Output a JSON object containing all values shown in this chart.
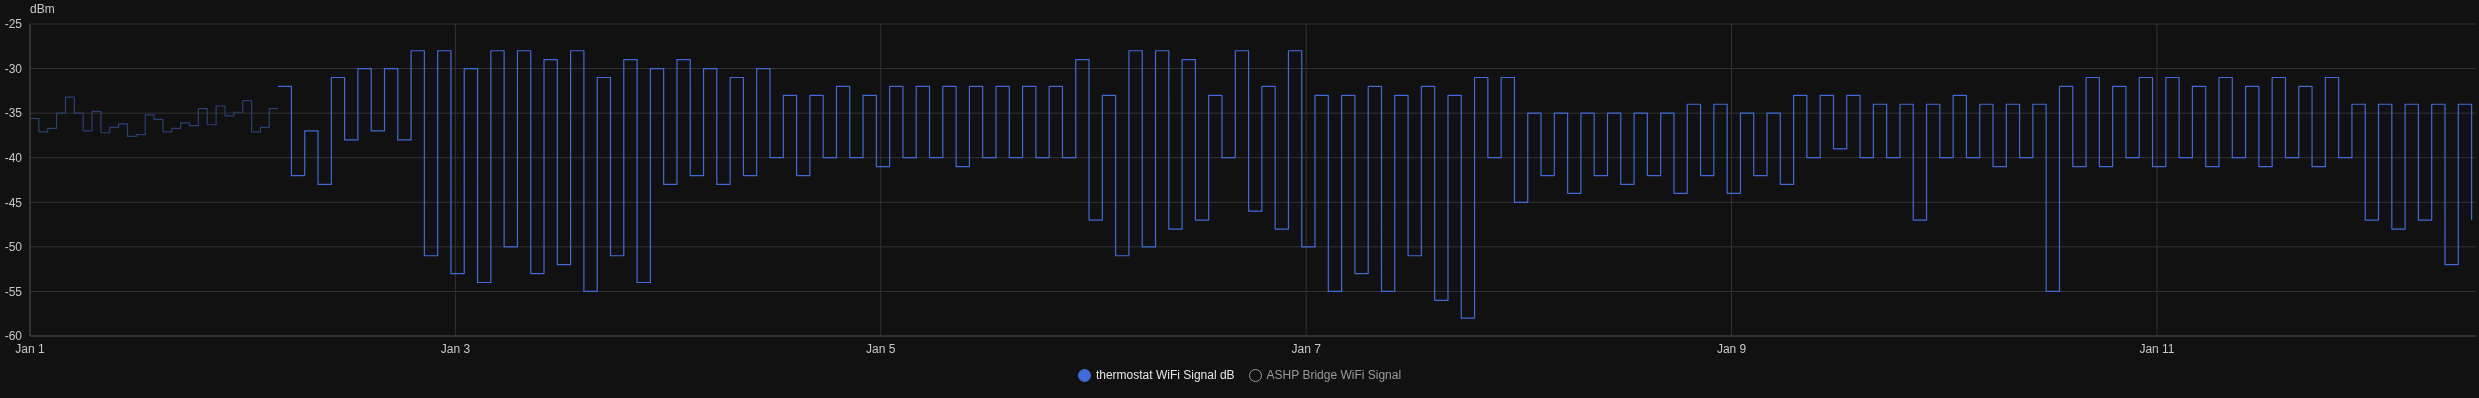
{
  "chart_data": {
    "type": "step",
    "ylabel": "dBm",
    "xlim": [
      "--01-01T00:00",
      "--01-12T12:00"
    ],
    "xticks": [
      {
        "value": "--01-01",
        "label": "Jan 1"
      },
      {
        "value": "--01-03",
        "label": "Jan 3"
      },
      {
        "value": "--01-05",
        "label": "Jan 5"
      },
      {
        "value": "--01-07",
        "label": "Jan 7"
      },
      {
        "value": "--01-09",
        "label": "Jan 9"
      },
      {
        "value": "--01-11",
        "label": "Jan 11"
      }
    ],
    "ylim": [
      -60,
      -25
    ],
    "yticks": [
      -60,
      -55,
      -50,
      -45,
      -40,
      -35,
      -30,
      -25
    ],
    "grid": true,
    "legend": "bottom",
    "marker": "none",
    "series": [
      {
        "color": "#2b3f72",
        "x": [
          "--01-01T00:00",
          "--01-01T01:00",
          "--01-01T02:00",
          "--01-01T03:00",
          "--01-01T04:00",
          "--01-01T05:00",
          "--01-01T06:00",
          "--01-01T07:00",
          "--01-01T08:00",
          "--01-01T09:00",
          "--01-01T10:00",
          "--01-01T11:00",
          "--01-01T12:00",
          "--01-01T13:00",
          "--01-01T14:00",
          "--01-01T15:00",
          "--01-01T16:00",
          "--01-01T17:00",
          "--01-01T18:00",
          "--01-01T19:00",
          "--01-01T20:00",
          "--01-01T21:00",
          "--01-01T22:00",
          "--01-01T23:00",
          "--01-02T00:00",
          "--01-02T01:00",
          "--01-02T02:00",
          "--01-02T03:00",
          "--01-02T04:00"
        ],
        "values": [
          -35.6,
          -37.1,
          -36.7,
          -35.0,
          -33.2,
          -35.0,
          -37.0,
          -34.8,
          -37.2,
          -36.6,
          -36.2,
          -37.6,
          -37.4,
          -35.2,
          -35.7,
          -37.1,
          -36.7,
          -36.1,
          -36.4,
          -34.5,
          -36.3,
          -34.2,
          -35.3,
          -34.9,
          -33.6,
          -37.1,
          -36.6,
          -34.5,
          -34.5
        ]
      },
      {
        "name": "thermostat WiFi Signal dB",
        "color": "#4169d8",
        "x": [
          "--01-02T04:00",
          "--01-02T05:30",
          "--01-02T07:00",
          "--01-02T08:30",
          "--01-02T10:00",
          "--01-02T11:30",
          "--01-02T13:00",
          "--01-02T14:30",
          "--01-02T16:00",
          "--01-02T17:30",
          "--01-02T19:00",
          "--01-02T20:30",
          "--01-02T22:00",
          "--01-02T23:30",
          "--01-03T01:00",
          "--01-03T02:30",
          "--01-03T04:00",
          "--01-03T05:30",
          "--01-03T07:00",
          "--01-03T08:30",
          "--01-03T10:00",
          "--01-03T11:30",
          "--01-03T13:00",
          "--01-03T14:30",
          "--01-03T16:00",
          "--01-03T17:30",
          "--01-03T19:00",
          "--01-03T20:30",
          "--01-03T22:00",
          "--01-03T23:30",
          "--01-04T01:00",
          "--01-04T02:30",
          "--01-04T04:00",
          "--01-04T05:30",
          "--01-04T07:00",
          "--01-04T08:30",
          "--01-04T10:00",
          "--01-04T11:30",
          "--01-04T13:00",
          "--01-04T14:30",
          "--01-04T16:00",
          "--01-04T17:30",
          "--01-04T19:00",
          "--01-04T20:30",
          "--01-04T22:00",
          "--01-04T23:30",
          "--01-05T01:00",
          "--01-05T02:30",
          "--01-05T04:00",
          "--01-05T05:30",
          "--01-05T07:00",
          "--01-05T08:30",
          "--01-05T10:00",
          "--01-05T11:30",
          "--01-05T13:00",
          "--01-05T14:30",
          "--01-05T16:00",
          "--01-05T17:30",
          "--01-05T19:00",
          "--01-05T20:30",
          "--01-05T22:00",
          "--01-05T23:30",
          "--01-06T01:00",
          "--01-06T02:30",
          "--01-06T04:00",
          "--01-06T05:30",
          "--01-06T07:00",
          "--01-06T08:30",
          "--01-06T10:00",
          "--01-06T11:30",
          "--01-06T13:00",
          "--01-06T14:30",
          "--01-06T16:00",
          "--01-06T17:30",
          "--01-06T19:00",
          "--01-06T20:30",
          "--01-06T22:00",
          "--01-06T23:30",
          "--01-07T01:00",
          "--01-07T02:30",
          "--01-07T04:00",
          "--01-07T05:30",
          "--01-07T07:00",
          "--01-07T08:30",
          "--01-07T10:00",
          "--01-07T11:30",
          "--01-07T13:00",
          "--01-07T14:30",
          "--01-07T16:00",
          "--01-07T17:30",
          "--01-07T19:00",
          "--01-07T20:30",
          "--01-07T22:00",
          "--01-07T23:30",
          "--01-08T01:00",
          "--01-08T02:30",
          "--01-08T04:00",
          "--01-08T05:30",
          "--01-08T07:00",
          "--01-08T08:30",
          "--01-08T10:00",
          "--01-08T11:30",
          "--01-08T13:00",
          "--01-08T14:30",
          "--01-08T16:00",
          "--01-08T17:30",
          "--01-08T19:00",
          "--01-08T20:30",
          "--01-08T22:00",
          "--01-08T23:30",
          "--01-09T01:00",
          "--01-09T02:30",
          "--01-09T04:00",
          "--01-09T05:30",
          "--01-09T07:00",
          "--01-09T08:30",
          "--01-09T10:00",
          "--01-09T11:30",
          "--01-09T13:00",
          "--01-09T14:30",
          "--01-09T16:00",
          "--01-09T17:30",
          "--01-09T19:00",
          "--01-09T20:30",
          "--01-09T22:00",
          "--01-09T23:30",
          "--01-10T01:00",
          "--01-10T02:30",
          "--01-10T04:00",
          "--01-10T05:30",
          "--01-10T07:00",
          "--01-10T08:30",
          "--01-10T10:00",
          "--01-10T11:30",
          "--01-10T13:00",
          "--01-10T14:30",
          "--01-10T16:00",
          "--01-10T17:30",
          "--01-10T19:00",
          "--01-10T20:30",
          "--01-10T22:00",
          "--01-10T23:30",
          "--01-11T01:00",
          "--01-11T02:30",
          "--01-11T04:00",
          "--01-11T05:30",
          "--01-11T07:00",
          "--01-11T08:30",
          "--01-11T10:00",
          "--01-11T11:30",
          "--01-11T13:00",
          "--01-11T14:30",
          "--01-11T16:00",
          "--01-11T17:30",
          "--01-11T19:00",
          "--01-11T20:30",
          "--01-11T22:00",
          "--01-11T23:30",
          "--01-12T01:00",
          "--01-12T02:30",
          "--01-12T04:00",
          "--01-12T05:30",
          "--01-12T07:00",
          "--01-12T08:30",
          "--01-12T10:00",
          "--01-12T11:30"
        ],
        "values": [
          -32,
          -42,
          -37,
          -43,
          -31,
          -38,
          -30,
          -37,
          -30,
          -38,
          -28,
          -51,
          -28,
          -53,
          -30,
          -54,
          -28,
          -50,
          -28,
          -53,
          -29,
          -52,
          -28,
          -55,
          -31,
          -51,
          -29,
          -54,
          -30,
          -43,
          -29,
          -42,
          -30,
          -43,
          -31,
          -42,
          -30,
          -40,
          -33,
          -42,
          -33,
          -40,
          -32,
          -40,
          -33,
          -41,
          -32,
          -40,
          -32,
          -40,
          -32,
          -41,
          -32,
          -40,
          -32,
          -40,
          -32,
          -40,
          -32,
          -40,
          -29,
          -47,
          -33,
          -51,
          -28,
          -50,
          -28,
          -48,
          -29,
          -47,
          -33,
          -40,
          -28,
          -46,
          -32,
          -48,
          -28,
          -50,
          -33,
          -55,
          -33,
          -53,
          -32,
          -55,
          -33,
          -51,
          -32,
          -56,
          -33,
          -58,
          -31,
          -40,
          -31,
          -45,
          -35,
          -42,
          -35,
          -44,
          -35,
          -42,
          -35,
          -43,
          -35,
          -42,
          -35,
          -44,
          -34,
          -42,
          -34,
          -44,
          -35,
          -42,
          -35,
          -43,
          -33,
          -40,
          -33,
          -39,
          -33,
          -40,
          -34,
          -40,
          -34,
          -47,
          -34,
          -40,
          -33,
          -40,
          -34,
          -41,
          -34,
          -40,
          -34,
          -55,
          -32,
          -41,
          -31,
          -41,
          -32,
          -40,
          -31,
          -41,
          -31,
          -40,
          -32,
          -41,
          -31,
          -40,
          -32,
          -41,
          -31,
          -40,
          -32,
          -41,
          -31,
          -40,
          -34,
          -47,
          -34,
          -48,
          -34,
          -47,
          -34,
          -52,
          -34,
          -47
        ]
      },
      {
        "name": "ASHP Bridge WiFi Signal"
      }
    ]
  }
}
